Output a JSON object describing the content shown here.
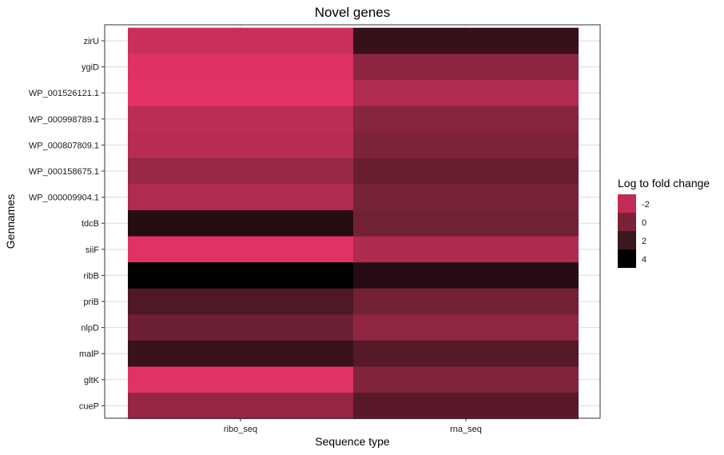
{
  "chart_data": {
    "type": "heatmap",
    "title": "Novel genes",
    "xlabel": "Sequence type",
    "ylabel": "Gennames",
    "x_categories": [
      "ribo_seq",
      "rna_seq"
    ],
    "y_categories": [
      "zirU",
      "ygiD",
      "WP_001526121.1",
      "WP_000998789.1",
      "WP_000807809.1",
      "WP_000158675.1",
      "WP_000009904.1",
      "tdcB",
      "siiF",
      "ribB",
      "priB",
      "nlpD",
      "malP",
      "gltK",
      "cueP"
    ],
    "values": [
      {
        "gene": "zirU",
        "ribo_seq": -2.6,
        "rna_seq": 2.4
      },
      {
        "gene": "ygiD",
        "ribo_seq": -3.3,
        "rna_seq": -0.6
      },
      {
        "gene": "WP_001526121.1",
        "ribo_seq": -3.5,
        "rna_seq": -1.8
      },
      {
        "gene": "WP_000998789.1",
        "ribo_seq": -2.2,
        "rna_seq": -0.4
      },
      {
        "gene": "WP_000807809.1",
        "ribo_seq": -2.0,
        "rna_seq": -0.1
      },
      {
        "gene": "WP_000158675.1",
        "ribo_seq": -1.0,
        "rna_seq": 0.6
      },
      {
        "gene": "WP_000009904.1",
        "ribo_seq": -1.8,
        "rna_seq": 0.1
      },
      {
        "gene": "tdcB",
        "ribo_seq": 3.0,
        "rna_seq": 0.3
      },
      {
        "gene": "siiF",
        "ribo_seq": -3.4,
        "rna_seq": -1.7
      },
      {
        "gene": "ribB",
        "ribo_seq": 4.4,
        "rna_seq": 3.0
      },
      {
        "gene": "priB",
        "ribo_seq": 1.5,
        "rna_seq": 0.3
      },
      {
        "gene": "nlpD",
        "ribo_seq": 0.5,
        "rna_seq": -0.7
      },
      {
        "gene": "malP",
        "ribo_seq": 2.3,
        "rna_seq": 1.3
      },
      {
        "gene": "gltK",
        "ribo_seq": -3.4,
        "rna_seq": -0.2
      },
      {
        "gene": "cueP",
        "ribo_seq": -0.9,
        "rna_seq": 1.2
      }
    ],
    "legend": {
      "title": "Log to fold change",
      "position": "right",
      "breaks": [
        -2,
        0,
        2,
        4
      ],
      "break_labels": [
        "-2",
        "0",
        "2",
        "4"
      ],
      "break_colors": [
        "#c22b55",
        "#7a2338",
        "#3a171d",
        "#000000"
      ]
    },
    "color_scale": {
      "low_color": "#e33366",
      "mid_color": "#7a2338",
      "high_color": "#000000",
      "domain": [
        -3.5,
        0,
        4.4
      ]
    },
    "grid": true
  }
}
